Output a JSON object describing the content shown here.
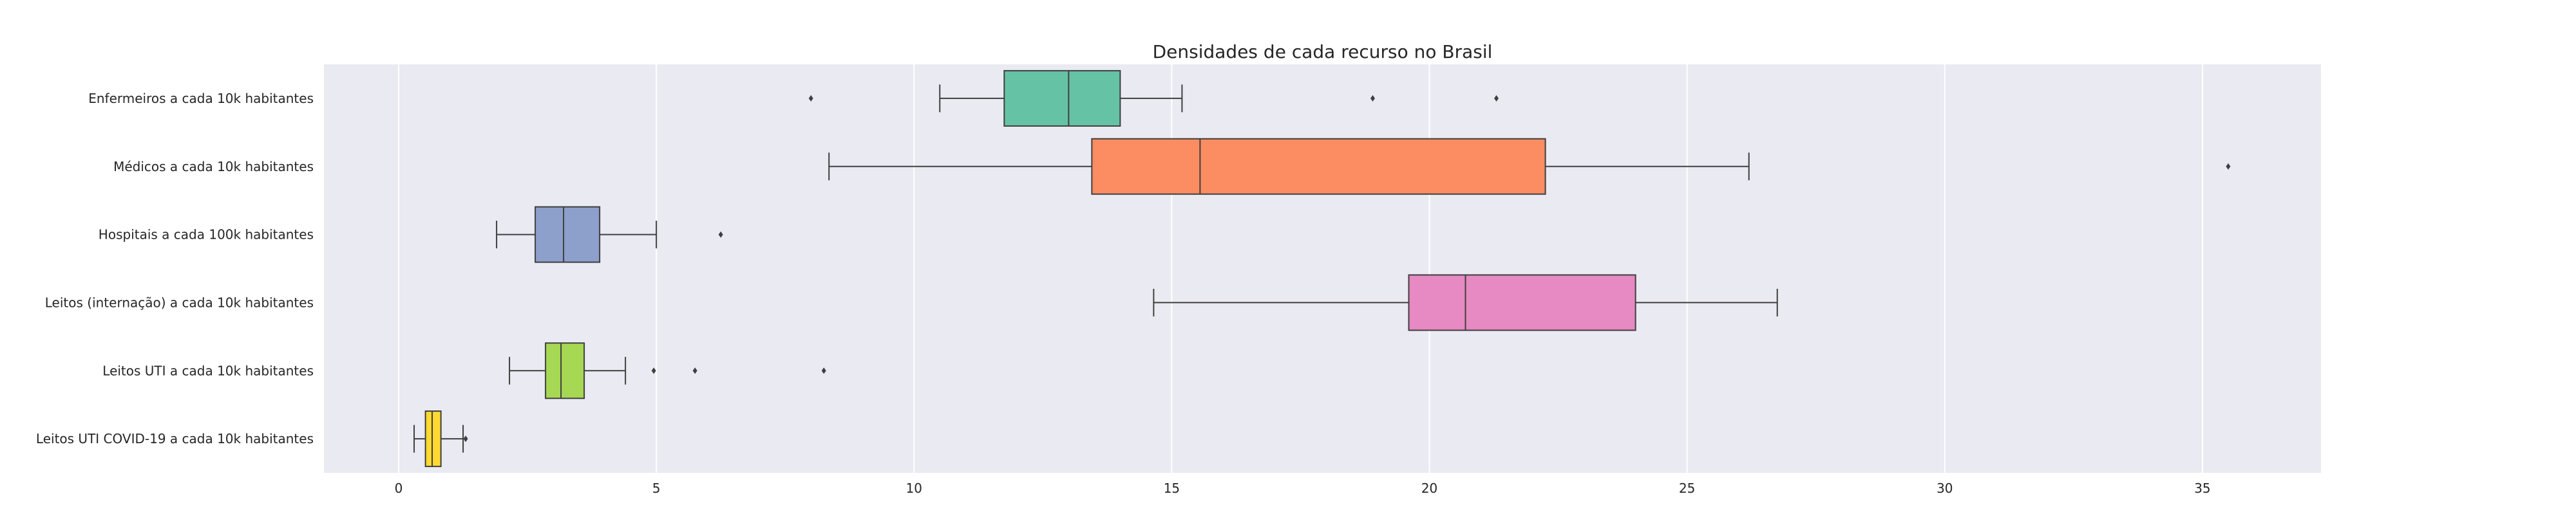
{
  "chart_data": {
    "type": "boxplot",
    "orientation": "horizontal",
    "title": "Densidades de cada recurso no Brasil",
    "xlabel": "",
    "ylabel": "",
    "xlim": [
      -1.45,
      37.3
    ],
    "xticks": [
      0,
      5,
      10,
      15,
      20,
      25,
      30,
      35
    ],
    "grid": true,
    "legend": "none",
    "categories": [
      "Enfermeiros a cada 10k habitantes",
      "Médicos a cada 10k habitantes",
      "Hospitais a cada 100k habitantes",
      "Leitos (internação) a cada 10k habitantes",
      "Leitos UTI a cada 10k habitantes",
      "Leitos UTI COVID-19 a cada 10k habitantes"
    ],
    "boxes": [
      {
        "whisker_low": 10.5,
        "q1": 11.75,
        "median": 13.0,
        "q3": 14.0,
        "whisker_high": 15.2,
        "outliers": [
          8.0,
          18.9,
          21.3
        ],
        "color": "#66c2a5"
      },
      {
        "whisker_low": 8.35,
        "q1": 13.45,
        "median": 15.55,
        "q3": 22.25,
        "whisker_high": 26.2,
        "outliers": [
          35.5
        ],
        "color": "#fc8d62"
      },
      {
        "whisker_low": 1.9,
        "q1": 2.65,
        "median": 3.2,
        "q3": 3.9,
        "whisker_high": 5.0,
        "outliers": [
          6.25
        ],
        "color": "#8da0cb"
      },
      {
        "whisker_low": 14.65,
        "q1": 19.6,
        "median": 20.7,
        "q3": 24.0,
        "whisker_high": 26.75,
        "outliers": [],
        "color": "#e78ac3"
      },
      {
        "whisker_low": 2.15,
        "q1": 2.85,
        "median": 3.15,
        "q3": 3.6,
        "whisker_high": 4.4,
        "outliers": [
          4.95,
          5.75,
          8.25
        ],
        "color": "#a6d854"
      },
      {
        "whisker_low": 0.3,
        "q1": 0.52,
        "median": 0.65,
        "q3": 0.82,
        "whisker_high": 1.25,
        "outliers": [
          1.3
        ],
        "color": "#ffd92f"
      }
    ]
  },
  "style": {
    "plot_background": "#eaeaf2",
    "grid_color": "#ffffff",
    "line_color": "#3f3f3f"
  }
}
